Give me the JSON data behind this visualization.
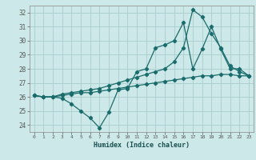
{
  "xlabel": "Humidex (Indice chaleur)",
  "bg_color": "#cce8e8",
  "grid_color": "#aacccc",
  "line_color": "#1a6b6b",
  "xlim": [
    -0.5,
    23.5
  ],
  "ylim": [
    23.5,
    32.5
  ],
  "yticks": [
    24,
    25,
    26,
    27,
    28,
    29,
    30,
    31,
    32
  ],
  "xticks": [
    0,
    1,
    2,
    3,
    4,
    5,
    6,
    7,
    8,
    9,
    10,
    11,
    12,
    13,
    14,
    15,
    16,
    17,
    18,
    19,
    20,
    21,
    22,
    23
  ],
  "line1_x": [
    0,
    1,
    2,
    3,
    4,
    5,
    6,
    7,
    8,
    9,
    10,
    11,
    12,
    13,
    14,
    15,
    16,
    17,
    18,
    19,
    20,
    21,
    22,
    23
  ],
  "line1_y": [
    26.1,
    26.0,
    26.0,
    25.9,
    25.5,
    25.0,
    24.5,
    23.8,
    24.9,
    26.5,
    26.6,
    27.8,
    28.0,
    29.5,
    29.7,
    30.0,
    31.3,
    28.0,
    29.4,
    31.0,
    29.4,
    28.0,
    28.0,
    27.5
  ],
  "line2_x": [
    0,
    1,
    2,
    3,
    4,
    5,
    6,
    7,
    8,
    9,
    10,
    11,
    12,
    13,
    14,
    15,
    16,
    17,
    18,
    19,
    20,
    21,
    22,
    23
  ],
  "line2_y": [
    26.1,
    26.0,
    26.0,
    26.2,
    26.3,
    26.4,
    26.5,
    26.6,
    26.8,
    27.0,
    27.2,
    27.4,
    27.6,
    27.8,
    28.0,
    28.5,
    29.5,
    32.2,
    31.7,
    30.5,
    29.5,
    28.2,
    27.8,
    27.5
  ],
  "line3_x": [
    0,
    1,
    2,
    3,
    4,
    5,
    6,
    7,
    8,
    9,
    10,
    11,
    12,
    13,
    14,
    15,
    16,
    17,
    18,
    19,
    20,
    21,
    22,
    23
  ],
  "line3_y": [
    26.1,
    26.0,
    26.0,
    26.1,
    26.2,
    26.3,
    26.3,
    26.4,
    26.5,
    26.6,
    26.7,
    26.8,
    26.9,
    27.0,
    27.1,
    27.2,
    27.3,
    27.4,
    27.5,
    27.5,
    27.6,
    27.6,
    27.5,
    27.5
  ]
}
